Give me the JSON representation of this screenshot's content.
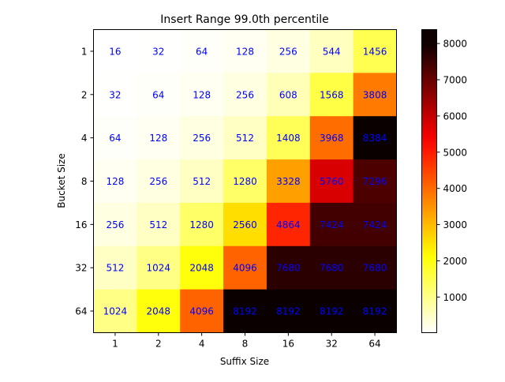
{
  "chart_data": {
    "type": "heatmap",
    "title": "Insert Range 99.0th percentile",
    "xlabel": "Suffix Size",
    "ylabel": "Bucket Size",
    "x_categories": [
      "1",
      "2",
      "4",
      "8",
      "16",
      "32",
      "64"
    ],
    "y_categories": [
      "1",
      "2",
      "4",
      "8",
      "16",
      "32",
      "64"
    ],
    "values": [
      [
        16,
        32,
        64,
        128,
        256,
        544,
        1456
      ],
      [
        32,
        64,
        128,
        256,
        608,
        1568,
        3808
      ],
      [
        64,
        128,
        256,
        512,
        1408,
        3968,
        8384
      ],
      [
        128,
        256,
        512,
        1280,
        3328,
        5760,
        7296
      ],
      [
        256,
        512,
        1280,
        2560,
        4864,
        7424,
        7424
      ],
      [
        512,
        1024,
        2048,
        4096,
        7680,
        7680,
        7680
      ],
      [
        1024,
        2048,
        4096,
        8192,
        8192,
        8192,
        8192
      ]
    ],
    "colormap": "hot_r",
    "colorbar": {
      "range": [
        16,
        8384
      ],
      "ticks": [
        "1000",
        "2000",
        "3000",
        "4000",
        "5000",
        "6000",
        "7000",
        "8000"
      ]
    },
    "annotation_color": "#0000ff",
    "grid": false
  }
}
